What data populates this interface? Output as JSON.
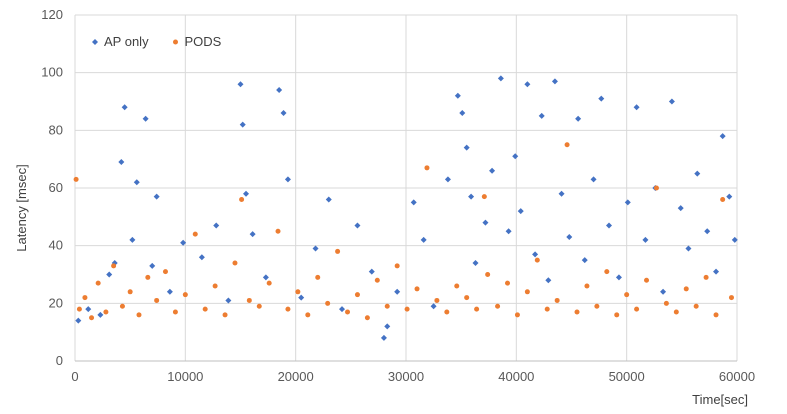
{
  "chart_data": {
    "type": "scatter",
    "title": "",
    "xlabel": "Time[sec]",
    "ylabel": "Latency [msec]",
    "xlim": [
      0,
      60000
    ],
    "ylim": [
      0,
      120
    ],
    "x_ticks": [
      0,
      10000,
      20000,
      30000,
      40000,
      50000,
      60000
    ],
    "y_ticks": [
      0,
      20,
      40,
      60,
      80,
      100,
      120
    ],
    "grid": true,
    "legend": {
      "placement": "top-left"
    },
    "series": [
      {
        "name": "AP only",
        "color": "#4472C4",
        "marker": "diamond",
        "points": [
          [
            300,
            14
          ],
          [
            1200,
            18
          ],
          [
            2300,
            16
          ],
          [
            3100,
            30
          ],
          [
            3600,
            34
          ],
          [
            4200,
            69
          ],
          [
            4500,
            88
          ],
          [
            5200,
            42
          ],
          [
            5600,
            62
          ],
          [
            6400,
            84
          ],
          [
            7000,
            33
          ],
          [
            7400,
            57
          ],
          [
            8600,
            24
          ],
          [
            9800,
            41
          ],
          [
            11500,
            36
          ],
          [
            12800,
            47
          ],
          [
            13900,
            21
          ],
          [
            15000,
            96
          ],
          [
            15200,
            82
          ],
          [
            15500,
            58
          ],
          [
            16100,
            44
          ],
          [
            17300,
            29
          ],
          [
            18500,
            94
          ],
          [
            18900,
            86
          ],
          [
            19300,
            63
          ],
          [
            20500,
            22
          ],
          [
            21800,
            39
          ],
          [
            23000,
            56
          ],
          [
            24200,
            18
          ],
          [
            25600,
            47
          ],
          [
            26900,
            31
          ],
          [
            28000,
            8
          ],
          [
            28300,
            12
          ],
          [
            29200,
            24
          ],
          [
            30700,
            55
          ],
          [
            31600,
            42
          ],
          [
            32500,
            19
          ],
          [
            33800,
            63
          ],
          [
            34700,
            92
          ],
          [
            35100,
            86
          ],
          [
            35500,
            74
          ],
          [
            35900,
            57
          ],
          [
            36300,
            34
          ],
          [
            37200,
            48
          ],
          [
            37800,
            66
          ],
          [
            38600,
            98
          ],
          [
            39300,
            45
          ],
          [
            39900,
            71
          ],
          [
            40400,
            52
          ],
          [
            41000,
            96
          ],
          [
            41700,
            37
          ],
          [
            42300,
            85
          ],
          [
            42900,
            28
          ],
          [
            43500,
            97
          ],
          [
            44100,
            58
          ],
          [
            44800,
            43
          ],
          [
            45600,
            84
          ],
          [
            46200,
            35
          ],
          [
            47000,
            63
          ],
          [
            47700,
            91
          ],
          [
            48400,
            47
          ],
          [
            49300,
            29
          ],
          [
            50100,
            55
          ],
          [
            50900,
            88
          ],
          [
            51700,
            42
          ],
          [
            52600,
            60
          ],
          [
            53300,
            24
          ],
          [
            54100,
            90
          ],
          [
            54900,
            53
          ],
          [
            55600,
            39
          ],
          [
            56400,
            65
          ],
          [
            57300,
            45
          ],
          [
            58100,
            31
          ],
          [
            58700,
            78
          ],
          [
            59300,
            57
          ],
          [
            59800,
            42
          ]
        ]
      },
      {
        "name": "PODS",
        "color": "#ED7D31",
        "marker": "circle",
        "points": [
          [
            100,
            63
          ],
          [
            400,
            18
          ],
          [
            900,
            22
          ],
          [
            1500,
            15
          ],
          [
            2100,
            27
          ],
          [
            2800,
            17
          ],
          [
            3500,
            33
          ],
          [
            4300,
            19
          ],
          [
            5000,
            24
          ],
          [
            5800,
            16
          ],
          [
            6600,
            29
          ],
          [
            7400,
            21
          ],
          [
            8200,
            31
          ],
          [
            9100,
            17
          ],
          [
            10000,
            23
          ],
          [
            10900,
            44
          ],
          [
            11800,
            18
          ],
          [
            12700,
            26
          ],
          [
            13600,
            16
          ],
          [
            14500,
            34
          ],
          [
            15100,
            56
          ],
          [
            15800,
            21
          ],
          [
            16700,
            19
          ],
          [
            17600,
            27
          ],
          [
            18400,
            45
          ],
          [
            19300,
            18
          ],
          [
            20200,
            24
          ],
          [
            21100,
            16
          ],
          [
            22000,
            29
          ],
          [
            22900,
            20
          ],
          [
            23800,
            38
          ],
          [
            24700,
            17
          ],
          [
            25600,
            23
          ],
          [
            26500,
            15
          ],
          [
            27400,
            28
          ],
          [
            28300,
            19
          ],
          [
            29200,
            33
          ],
          [
            30100,
            18
          ],
          [
            31000,
            25
          ],
          [
            31900,
            67
          ],
          [
            32800,
            21
          ],
          [
            33700,
            17
          ],
          [
            34600,
            26
          ],
          [
            35500,
            22
          ],
          [
            36400,
            18
          ],
          [
            37100,
            57
          ],
          [
            37400,
            30
          ],
          [
            38300,
            19
          ],
          [
            39200,
            27
          ],
          [
            40100,
            16
          ],
          [
            41000,
            24
          ],
          [
            41900,
            35
          ],
          [
            42800,
            18
          ],
          [
            43700,
            21
          ],
          [
            44600,
            75
          ],
          [
            45500,
            17
          ],
          [
            46400,
            26
          ],
          [
            47300,
            19
          ],
          [
            48200,
            31
          ],
          [
            49100,
            16
          ],
          [
            50000,
            23
          ],
          [
            50900,
            18
          ],
          [
            51800,
            28
          ],
          [
            52700,
            60
          ],
          [
            53600,
            20
          ],
          [
            54500,
            17
          ],
          [
            55400,
            25
          ],
          [
            56300,
            19
          ],
          [
            57200,
            29
          ],
          [
            58100,
            16
          ],
          [
            58700,
            56
          ],
          [
            59500,
            22
          ]
        ]
      }
    ]
  }
}
